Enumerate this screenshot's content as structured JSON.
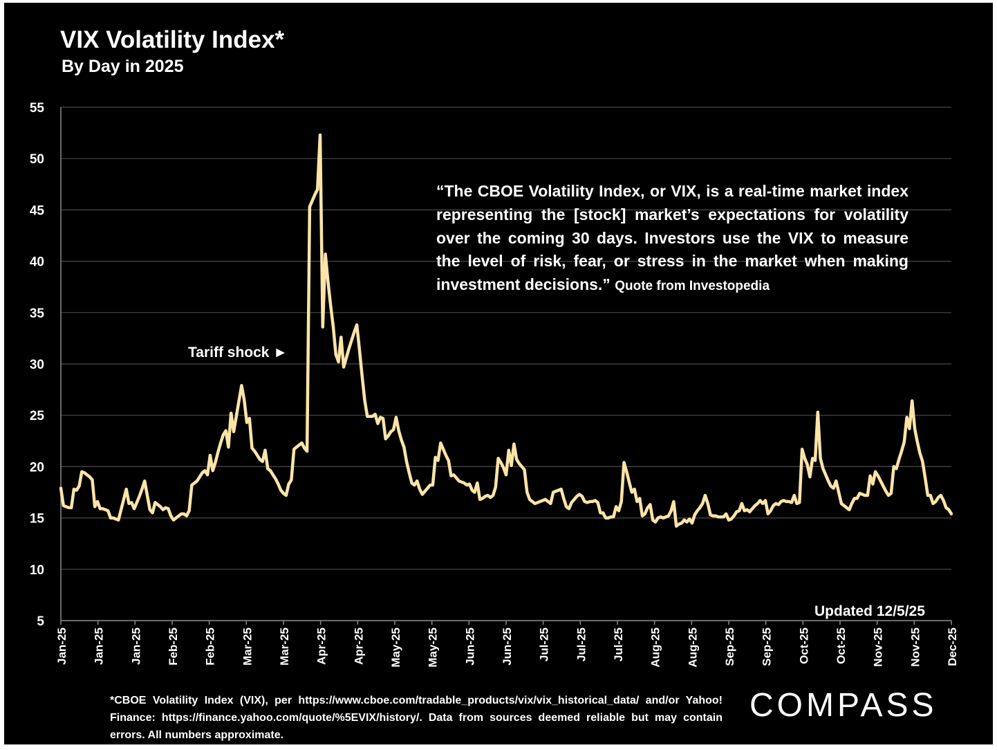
{
  "chart_data": {
    "type": "line",
    "title": "VIX Volatility Index*",
    "subtitle": "By Day in 2025",
    "xlabel": "",
    "ylabel": "",
    "ylim": [
      5,
      55
    ],
    "yticks": [
      5,
      10,
      15,
      20,
      25,
      30,
      35,
      40,
      45,
      50,
      55
    ],
    "grid": "horizontal",
    "line_color": "#FCE4A8",
    "x_tick_labels": [
      "Jan-25",
      "Jan-25",
      "Jan-25",
      "Feb-25",
      "Feb-25",
      "Mar-25",
      "Mar-25",
      "Apr-25",
      "Apr-25",
      "May-25",
      "May-25",
      "Jun-25",
      "Jun-25",
      "Jul-25",
      "Jul-25",
      "Jul-25",
      "Aug-25",
      "Aug-25",
      "Sep-25",
      "Sep-25",
      "Oct-25",
      "Oct-25",
      "Nov-25",
      "Nov-25",
      "Dec-25"
    ],
    "series": [
      {
        "values": [
          17.9,
          16.2,
          16.1,
          16.0,
          16.0,
          17.8,
          17.7,
          18.1,
          19.5,
          19.4,
          19.2,
          19.0,
          18.7,
          16.1,
          16.6,
          15.9,
          15.9,
          15.8,
          15.7,
          15.0,
          15.0,
          14.9,
          14.8,
          15.8,
          16.8,
          17.8,
          16.4,
          16.5,
          15.9,
          16.5,
          17.1,
          17.8,
          18.6,
          17.2,
          15.8,
          15.5,
          16.5,
          16.3,
          16.1,
          15.8,
          16.0,
          15.9,
          15.2,
          14.8,
          15.0,
          15.2,
          15.4,
          15.4,
          15.2,
          15.7,
          18.2,
          18.4,
          18.6,
          19.0,
          19.4,
          19.6,
          19.2,
          21.1,
          19.6,
          20.4,
          21.4,
          22.3,
          23.1,
          23.5,
          21.9,
          25.2,
          23.4,
          24.9,
          26.4,
          27.9,
          26.5,
          24.3,
          24.7,
          21.8,
          21.5,
          21.1,
          20.7,
          20.5,
          21.6,
          19.8,
          19.6,
          19.2,
          18.8,
          18.3,
          17.7,
          17.4,
          17.2,
          18.3,
          18.7,
          21.7,
          21.9,
          22.1,
          22.3,
          21.8,
          21.5,
          45.3,
          45.9,
          46.5,
          47.0,
          52.3,
          33.6,
          40.7,
          38.0,
          35.7,
          33.6,
          30.9,
          30.2,
          32.6,
          29.7,
          30.6,
          31.5,
          32.3,
          33.1,
          33.8,
          31.4,
          28.9,
          26.5,
          24.9,
          24.9,
          24.9,
          25.1,
          24.2,
          24.8,
          24.7,
          22.7,
          23.0,
          23.4,
          23.6,
          24.8,
          23.5,
          22.6,
          21.9,
          20.5,
          19.4,
          18.4,
          18.2,
          18.6,
          17.8,
          17.3,
          17.6,
          17.9,
          18.2,
          18.2,
          20.9,
          20.6,
          22.3,
          21.7,
          21.1,
          20.6,
          19.1,
          19.2,
          18.9,
          18.6,
          18.5,
          18.4,
          18.2,
          18.3,
          17.7,
          17.5,
          18.4,
          16.8,
          16.9,
          17.1,
          17.2,
          17.0,
          17.2,
          18.0,
          20.8,
          20.4,
          19.9,
          19.2,
          21.6,
          20.1,
          22.2,
          20.7,
          20.3,
          20.0,
          19.7,
          17.5,
          16.8,
          16.6,
          16.4,
          16.5,
          16.6,
          16.7,
          16.8,
          16.6,
          16.4,
          17.5,
          17.6,
          17.7,
          17.8,
          16.9,
          16.1,
          15.9,
          16.5,
          16.8,
          17.1,
          17.3,
          17.1,
          16.6,
          16.5,
          16.6,
          16.6,
          16.7,
          16.5,
          15.5,
          15.5,
          15.0,
          15.0,
          15.1,
          15.1,
          16.1,
          15.7,
          16.6,
          20.4,
          19.5,
          18.5,
          17.5,
          17.8,
          16.6,
          16.9,
          15.2,
          15.4,
          16.0,
          16.3,
          14.8,
          14.6,
          15.0,
          15.1,
          15.0,
          15.1,
          15.2,
          15.7,
          16.6,
          14.2,
          14.4,
          14.5,
          14.8,
          14.6,
          14.9,
          14.5,
          15.3,
          15.7,
          16.0,
          16.4,
          17.2,
          16.4,
          15.3,
          15.2,
          15.2,
          15.1,
          15.1,
          15.1,
          15.4,
          14.8,
          14.9,
          15.2,
          15.6,
          15.7,
          16.4,
          15.7,
          15.8,
          15.6,
          15.9,
          16.2,
          16.4,
          16.7,
          16.4,
          16.7,
          15.4,
          15.7,
          16.2,
          16.4,
          16.3,
          16.6,
          16.7,
          16.6,
          16.6,
          16.5,
          17.2,
          16.4,
          16.5,
          21.7,
          20.8,
          20.2,
          19.0,
          20.8,
          20.6,
          25.3,
          20.8,
          19.8,
          19.2,
          18.6,
          18.1,
          17.9,
          18.6,
          17.5,
          16.4,
          16.2,
          16.0,
          15.8,
          16.4,
          16.9,
          16.9,
          17.4,
          17.3,
          17.2,
          17.2,
          19.1,
          18.3,
          19.5,
          19.1,
          18.6,
          18.1,
          17.6,
          17.2,
          17.4,
          20.0,
          19.8,
          20.7,
          21.5,
          22.4,
          24.8,
          23.7,
          26.4,
          23.7,
          22.4,
          21.3,
          20.5,
          18.9,
          17.2,
          17.2,
          16.4,
          16.6,
          17.0,
          17.2,
          16.7,
          16.0,
          15.8,
          15.4
        ]
      }
    ],
    "annotations": {
      "tariff_shock": "Tariff shock ►",
      "updated": "Updated 12/5/25"
    }
  },
  "quote": {
    "text": "“The CBOE Volatility Index, or VIX, is a real-time market index representing the [stock] market’s expectations for volatility over the coming 30 days. Investors use the VIX to measure the level of risk, fear, or stress in the market when making investment decisions.”",
    "source": "Quote from Investopedia"
  },
  "footnote": "*CBOE Volatility Index (VIX), per https://www.cboe.com/tradable_products/vix/vix_historical_data/ and/or Yahoo! Finance: https://finance.yahoo.com/quote/%5EVIX/history/. Data from sources deemed reliable but may contain errors. All numbers approximate.",
  "logo": "COMPASS"
}
